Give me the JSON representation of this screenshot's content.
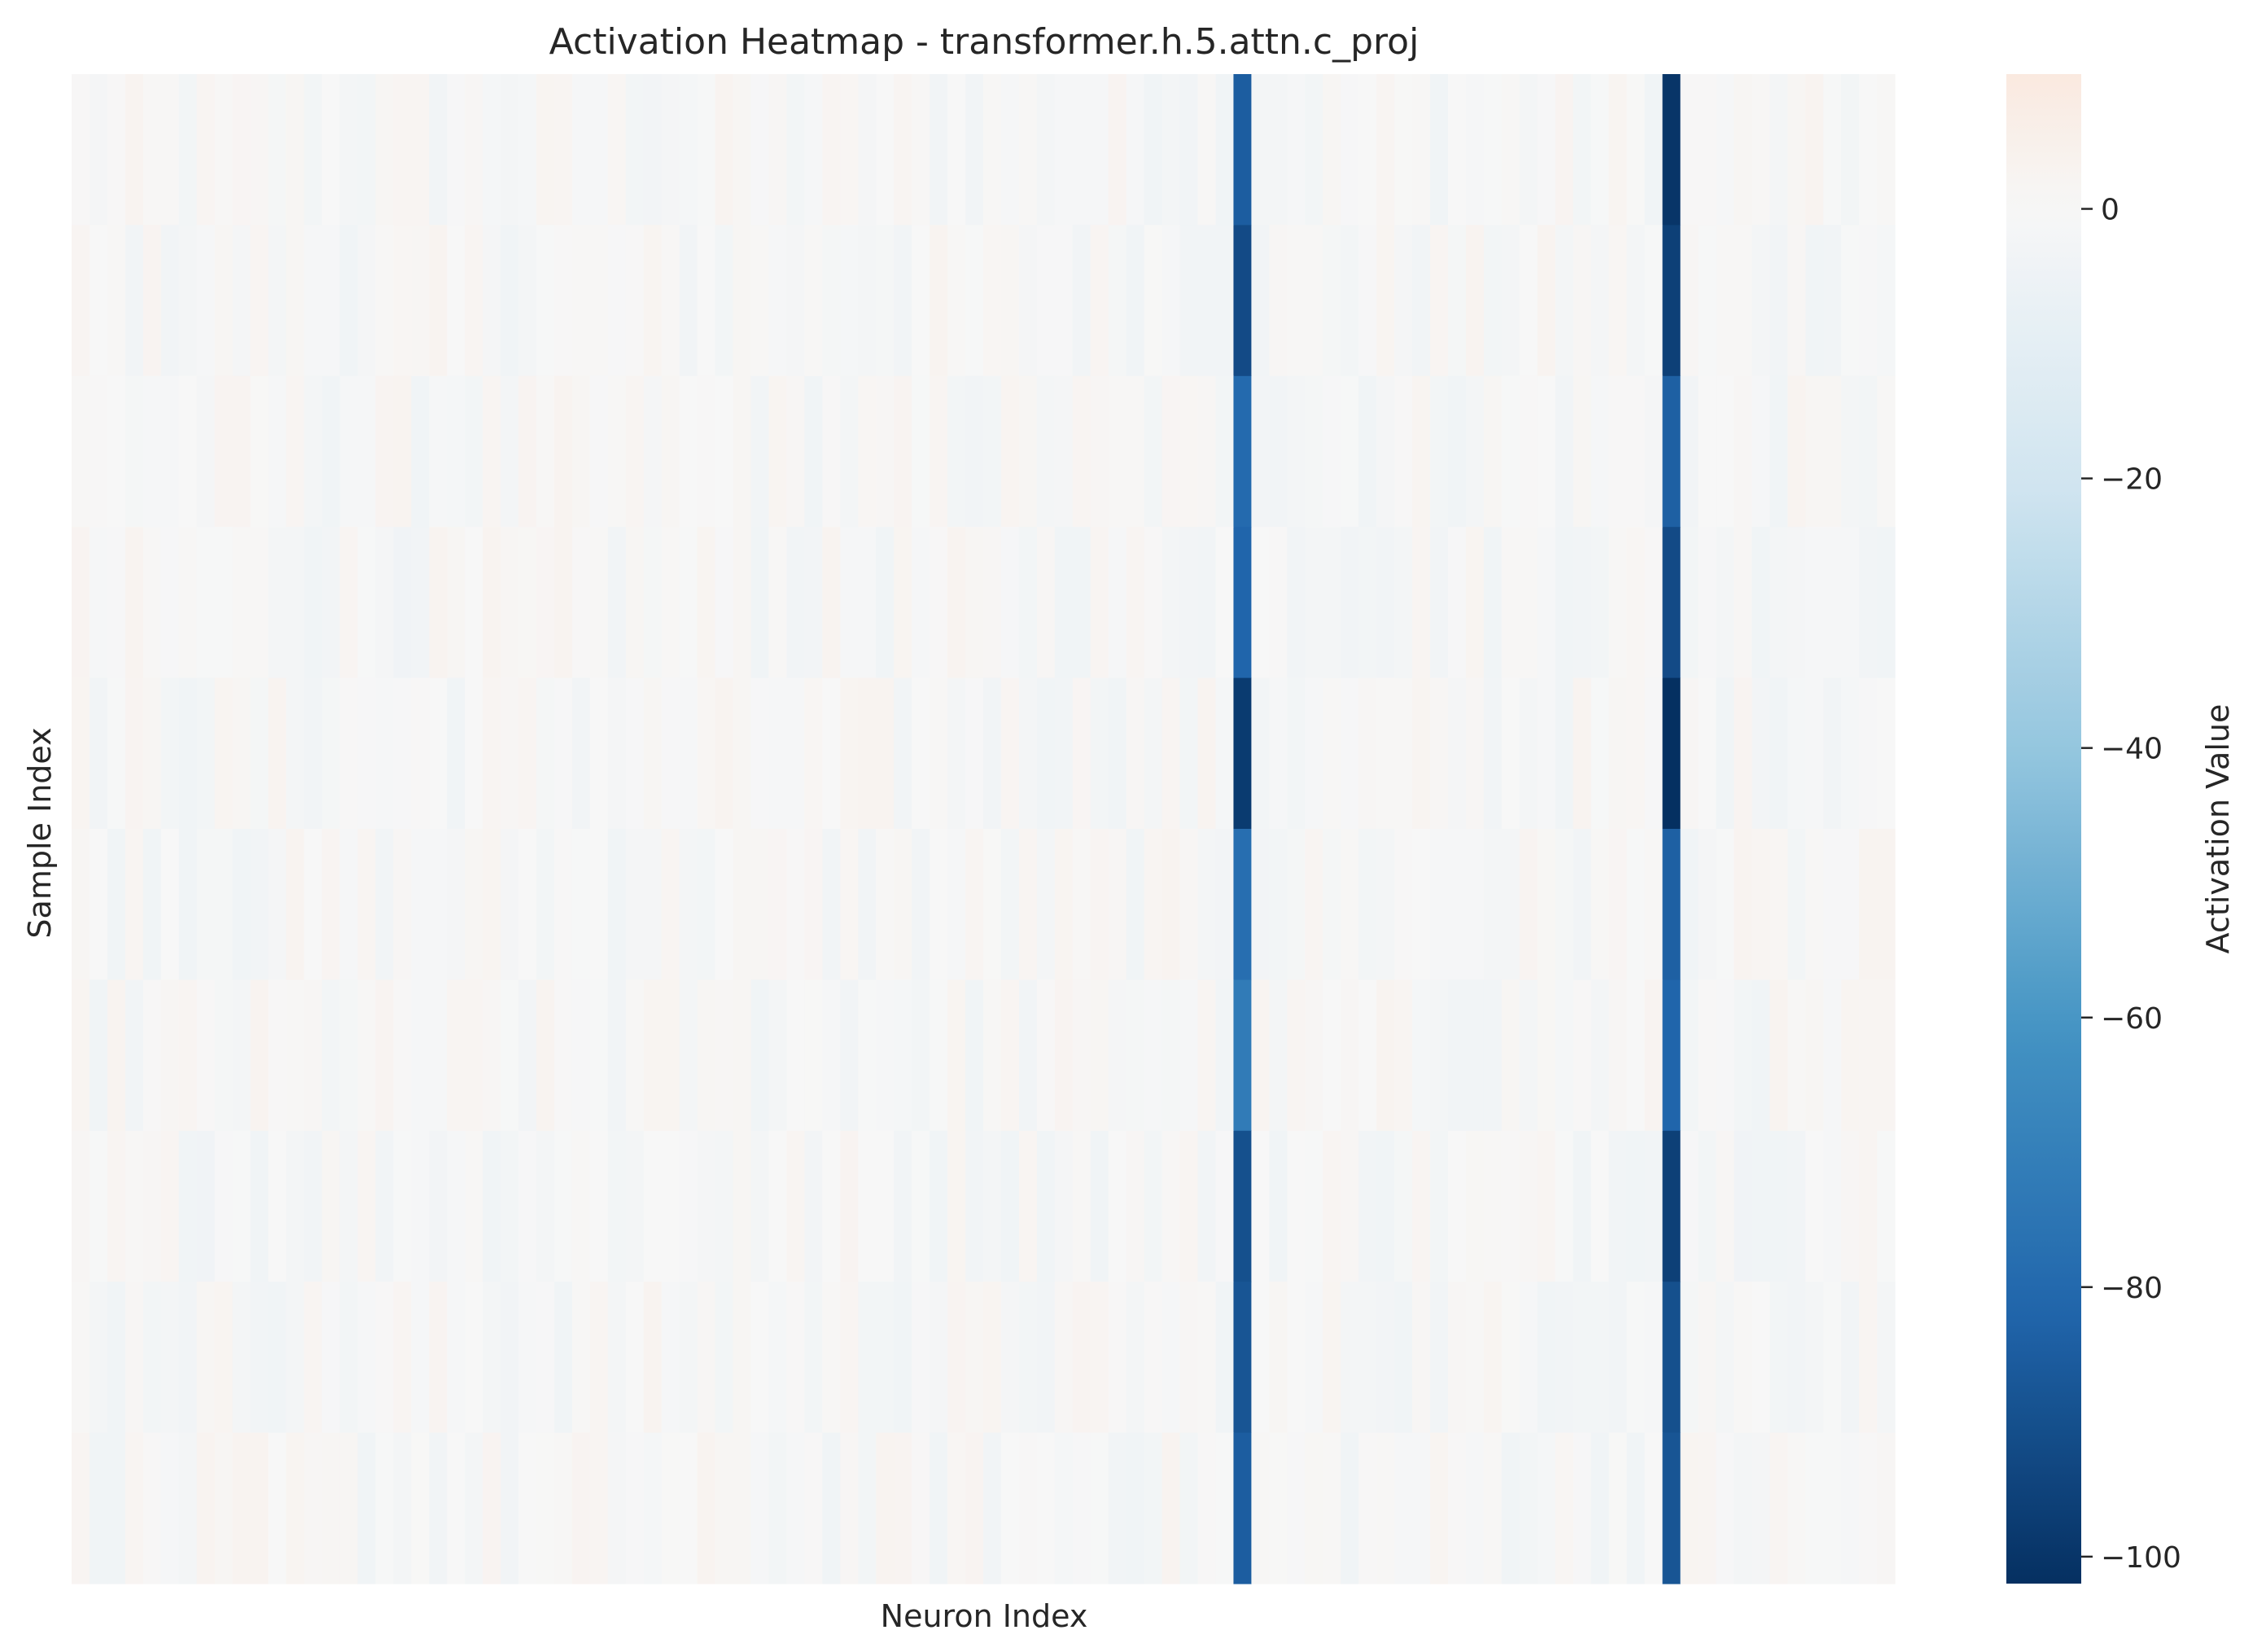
{
  "chart_data": {
    "type": "heatmap",
    "title": "Activation Heatmap - transformer.h.5.attn.c_proj",
    "xlabel": "Neuron Index",
    "ylabel": "Sample Index",
    "colorbar": {
      "label": "Activation Value",
      "colormap": "RdBu_r",
      "vmin": -102,
      "vmax": 10,
      "ticks": [
        0,
        -20,
        -40,
        -60,
        -80,
        -100
      ],
      "tick_labels": [
        "0",
        "−20",
        "−40",
        "−60",
        "−80",
        "−100"
      ]
    },
    "n_samples": 10,
    "n_neurons": 102,
    "baseline_value": 0,
    "grid": false,
    "x_ticks_shown": false,
    "y_ticks_shown": false,
    "notable_columns": [
      {
        "neuron": 37,
        "values": [
          1.5,
          1.5,
          1.5,
          1.5,
          1.5,
          1.5,
          1.5,
          1.5,
          1.5,
          1.5
        ]
      },
      {
        "neuron": 65,
        "values": [
          -85,
          -92,
          -80,
          -82,
          -98,
          -78,
          -72,
          -90,
          -88,
          -85
        ]
      },
      {
        "neuron": 89,
        "values": [
          -100,
          -96,
          -84,
          -92,
          -102,
          -84,
          -82,
          -96,
          -90,
          -88
        ]
      }
    ],
    "background_cells_range": [
      -4,
      3
    ]
  }
}
